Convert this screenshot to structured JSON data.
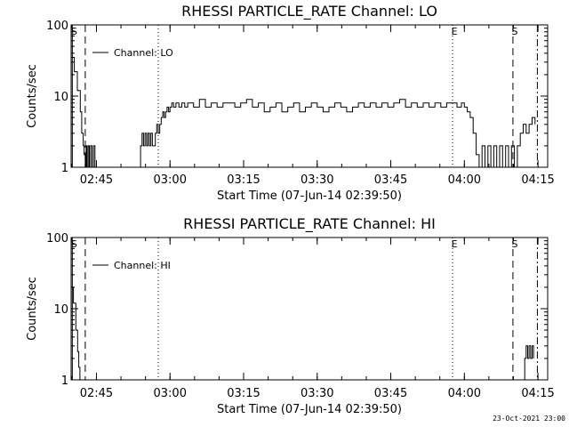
{
  "footer_date": "23-Oct-2021 23:00",
  "chart_data": [
    {
      "type": "line",
      "title": "RHESSI PARTICLE_RATE Channel: LO",
      "xlabel": "Start Time (07-Jun-14 02:39:50)",
      "ylabel": "Counts/sec",
      "yscale": "log",
      "xlim": [
        2.664,
        4.283
      ],
      "ylim": [
        1,
        100
      ],
      "xticks": [
        {
          "v": 2.75,
          "label": "02:45"
        },
        {
          "v": 3.0,
          "label": "03:00"
        },
        {
          "v": 3.25,
          "label": "03:15"
        },
        {
          "v": 3.5,
          "label": "03:30"
        },
        {
          "v": 3.75,
          "label": "03:45"
        },
        {
          "v": 4.0,
          "label": "04:00"
        },
        {
          "v": 4.25,
          "label": "04:15"
        }
      ],
      "yticks": [
        {
          "v": 1,
          "label": "1"
        },
        {
          "v": 10,
          "label": "10"
        },
        {
          "v": 100,
          "label": "100"
        }
      ],
      "legend": "Channel: LO",
      "markers": [
        {
          "x": 2.668,
          "style": "solid",
          "label": "S"
        },
        {
          "x": 2.712,
          "style": "dashed",
          "label": ""
        },
        {
          "x": 2.96,
          "style": "dotted",
          "label": ""
        },
        {
          "x": 3.96,
          "style": "dotted",
          "label": "E"
        },
        {
          "x": 4.165,
          "style": "dashed",
          "label": "S"
        },
        {
          "x": 4.248,
          "style": "dashdot",
          "label": ""
        }
      ],
      "series": [
        {
          "x": [
            2.664,
            2.675,
            2.685,
            2.695,
            2.7,
            2.705,
            2.708,
            2.712,
            2.715,
            2.718,
            2.722,
            2.726,
            2.73,
            2.735,
            2.74,
            2.745,
            2.75,
            2.755
          ],
          "y": [
            35,
            22,
            12,
            6,
            3,
            2,
            1.5,
            1,
            2,
            1,
            2,
            1,
            2,
            1,
            2,
            1,
            1,
            1
          ]
        },
        {
          "x": [
            2.88,
            2.895,
            2.9,
            2.905,
            2.91,
            2.915,
            2.92,
            2.925,
            2.93,
            2.935,
            2.94,
            2.945,
            2.95,
            2.955,
            2.96,
            2.965,
            2.97,
            2.975,
            2.98,
            2.985,
            2.99,
            2.995,
            3.0,
            3.006,
            3.012,
            3.02,
            3.03,
            3.04,
            3.05,
            3.06,
            3.08,
            3.1,
            3.12,
            3.14,
            3.16,
            3.18,
            3.2,
            3.22,
            3.24,
            3.26,
            3.28,
            3.3,
            3.32,
            3.34,
            3.36,
            3.38,
            3.4,
            3.42,
            3.44,
            3.46,
            3.48,
            3.5,
            3.52,
            3.54,
            3.56,
            3.58,
            3.6,
            3.62,
            3.64,
            3.66,
            3.68,
            3.7,
            3.72,
            3.74,
            3.76,
            3.78,
            3.8,
            3.82,
            3.84,
            3.86,
            3.88,
            3.9,
            3.92,
            3.94,
            3.96,
            3.975,
            3.99,
            4.0,
            4.01,
            4.02,
            4.03,
            4.04,
            4.05,
            4.06,
            4.07,
            4.08,
            4.09,
            4.1,
            4.11,
            4.12,
            4.13,
            4.14,
            4.15,
            4.16,
            4.17,
            4.18,
            4.19,
            4.2,
            4.21,
            4.22,
            4.23,
            4.24
          ],
          "y": [
            1,
            1,
            2,
            3,
            2,
            3,
            2,
            3,
            2,
            3,
            2,
            2,
            3,
            4,
            3,
            4,
            5,
            6,
            5,
            6,
            7,
            6,
            7,
            8,
            7,
            8,
            7,
            8,
            7,
            8,
            7,
            9,
            7,
            8,
            7,
            8,
            8,
            7,
            8,
            9,
            7,
            8,
            6,
            7,
            8,
            6,
            7,
            8,
            6,
            7,
            8,
            7,
            6,
            7,
            8,
            7,
            6,
            7,
            8,
            7,
            8,
            7,
            8,
            7,
            8,
            9,
            7,
            8,
            7,
            8,
            7,
            8,
            7,
            8,
            8,
            7,
            8,
            7,
            6,
            5,
            3,
            1.5,
            1,
            2,
            1,
            2,
            1,
            2,
            1,
            2,
            1,
            2,
            1,
            2,
            1,
            2,
            3,
            4,
            3,
            4,
            5,
            4
          ]
        }
      ]
    },
    {
      "type": "line",
      "title": "RHESSI PARTICLE_RATE Channel: HI",
      "xlabel": "Start Time (07-Jun-14 02:39:50)",
      "ylabel": "Counts/sec",
      "yscale": "log",
      "xlim": [
        2.664,
        4.283
      ],
      "ylim": [
        1,
        100
      ],
      "xticks": [
        {
          "v": 2.75,
          "label": "02:45"
        },
        {
          "v": 3.0,
          "label": "03:00"
        },
        {
          "v": 3.25,
          "label": "03:15"
        },
        {
          "v": 3.5,
          "label": "03:30"
        },
        {
          "v": 3.75,
          "label": "03:45"
        },
        {
          "v": 4.0,
          "label": "04:00"
        },
        {
          "v": 4.25,
          "label": "04:15"
        }
      ],
      "yticks": [
        {
          "v": 1,
          "label": "1"
        },
        {
          "v": 10,
          "label": "10"
        },
        {
          "v": 100,
          "label": "100"
        }
      ],
      "legend": "Channel: HI",
      "markers": [
        {
          "x": 2.668,
          "style": "solid",
          "label": "S"
        },
        {
          "x": 2.712,
          "style": "dashed",
          "label": ""
        },
        {
          "x": 2.96,
          "style": "dotted",
          "label": ""
        },
        {
          "x": 3.96,
          "style": "dotted",
          "label": "E"
        },
        {
          "x": 4.165,
          "style": "dashed",
          "label": "S"
        },
        {
          "x": 4.248,
          "style": "dashdot",
          "label": ""
        }
      ],
      "series": [
        {
          "x": [
            2.664,
            2.672,
            2.68,
            2.686,
            2.69,
            2.694
          ],
          "y": [
            20,
            12,
            5,
            2.5,
            1.5,
            1
          ]
        },
        {
          "x": [
            4.2,
            4.205,
            4.21,
            4.215,
            4.22,
            4.225,
            4.23,
            4.235
          ],
          "y": [
            1,
            2,
            3,
            2,
            3,
            2,
            3,
            2
          ]
        }
      ]
    }
  ]
}
